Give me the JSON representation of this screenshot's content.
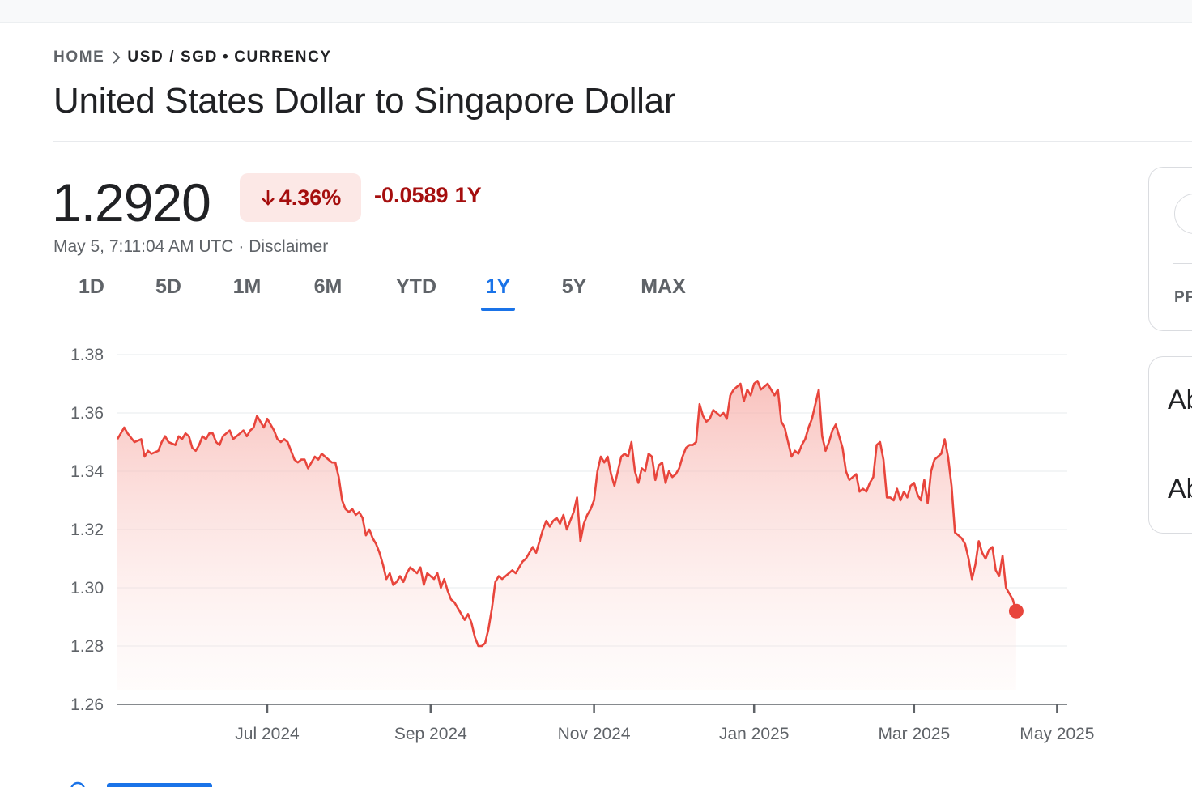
{
  "breadcrumb": {
    "home": "HOME",
    "pair": "USD / SGD",
    "dot": "•",
    "type": "CURRENCY",
    "separator_icon": "chevron-right-icon"
  },
  "title": "United States Dollar to Singapore Dollar",
  "quote": {
    "price": "1.2920",
    "change_percent": "4.36%",
    "change_direction": "down",
    "change_abs": "-0.0589",
    "change_period": "1Y",
    "timestamp": "May 5, 7:11:04 AM UTC",
    "timestamp_sep": " · ",
    "disclaimer": "Disclaimer",
    "negative_color": "#a50e0e",
    "negative_bg": "#fce8e6"
  },
  "range_tabs": [
    {
      "label": "1D",
      "active": false
    },
    {
      "label": "5D",
      "active": false
    },
    {
      "label": "1M",
      "active": false
    },
    {
      "label": "6M",
      "active": false
    },
    {
      "label": "YTD",
      "active": false
    },
    {
      "label": "1Y",
      "active": true
    },
    {
      "label": "5Y",
      "active": false
    },
    {
      "label": "MAX",
      "active": false
    }
  ],
  "side_cards": {
    "card1_label": "PF",
    "card2_label_1": "Ab",
    "card2_label_2": "Ab"
  },
  "chart_data": {
    "type": "area",
    "line_color": "#e8453c",
    "fill_color": "#f8bcb8",
    "y_ticks": [
      "1.38",
      "1.36",
      "1.34",
      "1.32",
      "1.30",
      "1.28",
      "1.26"
    ],
    "ylim": [
      1.26,
      1.38
    ],
    "x_ticks": [
      {
        "label": "Jul 2024",
        "day": 44
      },
      {
        "label": "Sep 2024",
        "day": 92
      },
      {
        "label": "Nov 2024",
        "day": 140
      },
      {
        "label": "Jan 2025",
        "day": 187
      },
      {
        "label": "Mar 2025",
        "day": 234
      },
      {
        "label": "May 2025",
        "day": 276
      }
    ],
    "x_range_days": [
      0,
      279
    ],
    "last_value": 1.292,
    "points": [
      [
        0,
        1.351
      ],
      [
        2,
        1.355
      ],
      [
        3,
        1.353
      ],
      [
        5,
        1.35
      ],
      [
        7,
        1.351
      ],
      [
        8,
        1.345
      ],
      [
        9,
        1.347
      ],
      [
        10,
        1.346
      ],
      [
        12,
        1.347
      ],
      [
        13,
        1.35
      ],
      [
        14,
        1.352
      ],
      [
        15,
        1.35
      ],
      [
        17,
        1.349
      ],
      [
        18,
        1.352
      ],
      [
        19,
        1.351
      ],
      [
        20,
        1.353
      ],
      [
        21,
        1.352
      ],
      [
        22,
        1.348
      ],
      [
        23,
        1.347
      ],
      [
        24,
        1.349
      ],
      [
        25,
        1.352
      ],
      [
        26,
        1.351
      ],
      [
        27,
        1.353
      ],
      [
        28,
        1.353
      ],
      [
        29,
        1.35
      ],
      [
        30,
        1.349
      ],
      [
        31,
        1.352
      ],
      [
        32,
        1.353
      ],
      [
        33,
        1.354
      ],
      [
        34,
        1.351
      ],
      [
        35,
        1.352
      ],
      [
        36,
        1.353
      ],
      [
        37,
        1.354
      ],
      [
        38,
        1.352
      ],
      [
        39,
        1.354
      ],
      [
        40,
        1.355
      ],
      [
        41,
        1.359
      ],
      [
        42,
        1.357
      ],
      [
        43,
        1.355
      ],
      [
        44,
        1.358
      ],
      [
        45,
        1.356
      ],
      [
        46,
        1.354
      ],
      [
        47,
        1.351
      ],
      [
        48,
        1.35
      ],
      [
        49,
        1.351
      ],
      [
        50,
        1.35
      ],
      [
        51,
        1.347
      ],
      [
        52,
        1.344
      ],
      [
        53,
        1.343
      ],
      [
        54,
        1.344
      ],
      [
        55,
        1.344
      ],
      [
        56,
        1.341
      ],
      [
        57,
        1.343
      ],
      [
        58,
        1.345
      ],
      [
        59,
        1.344
      ],
      [
        60,
        1.346
      ],
      [
        61,
        1.345
      ],
      [
        62,
        1.344
      ],
      [
        63,
        1.343
      ],
      [
        64,
        1.343
      ],
      [
        65,
        1.338
      ],
      [
        66,
        1.33
      ],
      [
        67,
        1.327
      ],
      [
        68,
        1.326
      ],
      [
        69,
        1.327
      ],
      [
        70,
        1.325
      ],
      [
        71,
        1.326
      ],
      [
        72,
        1.324
      ],
      [
        73,
        1.318
      ],
      [
        74,
        1.32
      ],
      [
        75,
        1.317
      ],
      [
        76,
        1.315
      ],
      [
        77,
        1.312
      ],
      [
        78,
        1.308
      ],
      [
        79,
        1.303
      ],
      [
        80,
        1.305
      ],
      [
        81,
        1.301
      ],
      [
        82,
        1.302
      ],
      [
        83,
        1.304
      ],
      [
        84,
        1.302
      ],
      [
        85,
        1.305
      ],
      [
        86,
        1.307
      ],
      [
        87,
        1.306
      ],
      [
        88,
        1.305
      ],
      [
        89,
        1.307
      ],
      [
        90,
        1.301
      ],
      [
        91,
        1.305
      ],
      [
        92,
        1.304
      ],
      [
        93,
        1.303
      ],
      [
        94,
        1.305
      ],
      [
        95,
        1.3
      ],
      [
        96,
        1.303
      ],
      [
        97,
        1.299
      ],
      [
        98,
        1.296
      ],
      [
        99,
        1.295
      ],
      [
        100,
        1.293
      ],
      [
        101,
        1.291
      ],
      [
        102,
        1.289
      ],
      [
        103,
        1.291
      ],
      [
        104,
        1.288
      ],
      [
        105,
        1.283
      ],
      [
        106,
        1.28
      ],
      [
        107,
        1.28
      ],
      [
        108,
        1.281
      ],
      [
        109,
        1.286
      ],
      [
        110,
        1.293
      ],
      [
        111,
        1.302
      ],
      [
        112,
        1.304
      ],
      [
        113,
        1.303
      ],
      [
        114,
        1.304
      ],
      [
        115,
        1.305
      ],
      [
        116,
        1.306
      ],
      [
        117,
        1.305
      ],
      [
        118,
        1.307
      ],
      [
        119,
        1.309
      ],
      [
        120,
        1.31
      ],
      [
        121,
        1.312
      ],
      [
        122,
        1.314
      ],
      [
        123,
        1.312
      ],
      [
        124,
        1.316
      ],
      [
        125,
        1.32
      ],
      [
        126,
        1.323
      ],
      [
        127,
        1.321
      ],
      [
        128,
        1.323
      ],
      [
        129,
        1.324
      ],
      [
        130,
        1.322
      ],
      [
        131,
        1.325
      ],
      [
        132,
        1.32
      ],
      [
        133,
        1.323
      ],
      [
        134,
        1.326
      ],
      [
        135,
        1.331
      ],
      [
        136,
        1.316
      ],
      [
        137,
        1.322
      ],
      [
        138,
        1.325
      ],
      [
        139,
        1.327
      ],
      [
        140,
        1.33
      ],
      [
        141,
        1.34
      ],
      [
        142,
        1.345
      ],
      [
        143,
        1.343
      ],
      [
        144,
        1.345
      ],
      [
        145,
        1.339
      ],
      [
        146,
        1.335
      ],
      [
        147,
        1.34
      ],
      [
        148,
        1.345
      ],
      [
        149,
        1.346
      ],
      [
        150,
        1.345
      ],
      [
        151,
        1.35
      ],
      [
        152,
        1.34
      ],
      [
        153,
        1.336
      ],
      [
        154,
        1.341
      ],
      [
        155,
        1.34
      ],
      [
        156,
        1.346
      ],
      [
        157,
        1.345
      ],
      [
        158,
        1.337
      ],
      [
        159,
        1.342
      ],
      [
        160,
        1.343
      ],
      [
        161,
        1.336
      ],
      [
        162,
        1.34
      ],
      [
        163,
        1.338
      ],
      [
        164,
        1.339
      ],
      [
        165,
        1.341
      ],
      [
        166,
        1.345
      ],
      [
        167,
        1.348
      ],
      [
        168,
        1.349
      ],
      [
        169,
        1.349
      ],
      [
        170,
        1.35
      ],
      [
        171,
        1.363
      ],
      [
        172,
        1.359
      ],
      [
        173,
        1.357
      ],
      [
        174,
        1.358
      ],
      [
        175,
        1.361
      ],
      [
        176,
        1.36
      ],
      [
        177,
        1.359
      ],
      [
        178,
        1.36
      ],
      [
        179,
        1.358
      ],
      [
        180,
        1.366
      ],
      [
        181,
        1.368
      ],
      [
        182,
        1.369
      ],
      [
        183,
        1.37
      ],
      [
        184,
        1.364
      ],
      [
        185,
        1.368
      ],
      [
        186,
        1.366
      ],
      [
        187,
        1.37
      ],
      [
        188,
        1.371
      ],
      [
        189,
        1.368
      ],
      [
        190,
        1.369
      ],
      [
        191,
        1.37
      ],
      [
        192,
        1.368
      ],
      [
        193,
        1.366
      ],
      [
        194,
        1.368
      ],
      [
        195,
        1.357
      ],
      [
        196,
        1.355
      ],
      [
        197,
        1.35
      ],
      [
        198,
        1.345
      ],
      [
        199,
        1.347
      ],
      [
        200,
        1.346
      ],
      [
        201,
        1.349
      ],
      [
        202,
        1.351
      ],
      [
        203,
        1.355
      ],
      [
        204,
        1.358
      ],
      [
        205,
        1.363
      ],
      [
        206,
        1.368
      ],
      [
        207,
        1.352
      ],
      [
        208,
        1.347
      ],
      [
        209,
        1.35
      ],
      [
        210,
        1.354
      ],
      [
        211,
        1.356
      ],
      [
        212,
        1.352
      ],
      [
        213,
        1.348
      ],
      [
        214,
        1.34
      ],
      [
        215,
        1.337
      ],
      [
        216,
        1.338
      ],
      [
        217,
        1.339
      ],
      [
        218,
        1.333
      ],
      [
        219,
        1.334
      ],
      [
        220,
        1.333
      ],
      [
        221,
        1.336
      ],
      [
        222,
        1.338
      ],
      [
        223,
        1.349
      ],
      [
        224,
        1.35
      ],
      [
        225,
        1.344
      ],
      [
        226,
        1.331
      ],
      [
        227,
        1.331
      ],
      [
        228,
        1.33
      ],
      [
        229,
        1.334
      ],
      [
        230,
        1.33
      ],
      [
        231,
        1.333
      ],
      [
        232,
        1.331
      ],
      [
        233,
        1.335
      ],
      [
        234,
        1.336
      ],
      [
        235,
        1.332
      ],
      [
        236,
        1.33
      ],
      [
        237,
        1.337
      ],
      [
        238,
        1.329
      ],
      [
        239,
        1.34
      ],
      [
        240,
        1.344
      ],
      [
        241,
        1.345
      ],
      [
        242,
        1.346
      ],
      [
        243,
        1.351
      ],
      [
        244,
        1.345
      ],
      [
        245,
        1.335
      ],
      [
        246,
        1.319
      ],
      [
        247,
        1.318
      ],
      [
        248,
        1.317
      ],
      [
        249,
        1.315
      ],
      [
        250,
        1.31
      ],
      [
        251,
        1.303
      ],
      [
        252,
        1.308
      ],
      [
        253,
        1.316
      ],
      [
        254,
        1.312
      ],
      [
        255,
        1.31
      ],
      [
        256,
        1.313
      ],
      [
        257,
        1.314
      ],
      [
        258,
        1.306
      ],
      [
        259,
        1.304
      ],
      [
        260,
        1.311
      ],
      [
        261,
        1.3
      ],
      [
        262,
        1.298
      ],
      [
        263,
        1.296
      ],
      [
        264,
        1.292
      ]
    ]
  }
}
